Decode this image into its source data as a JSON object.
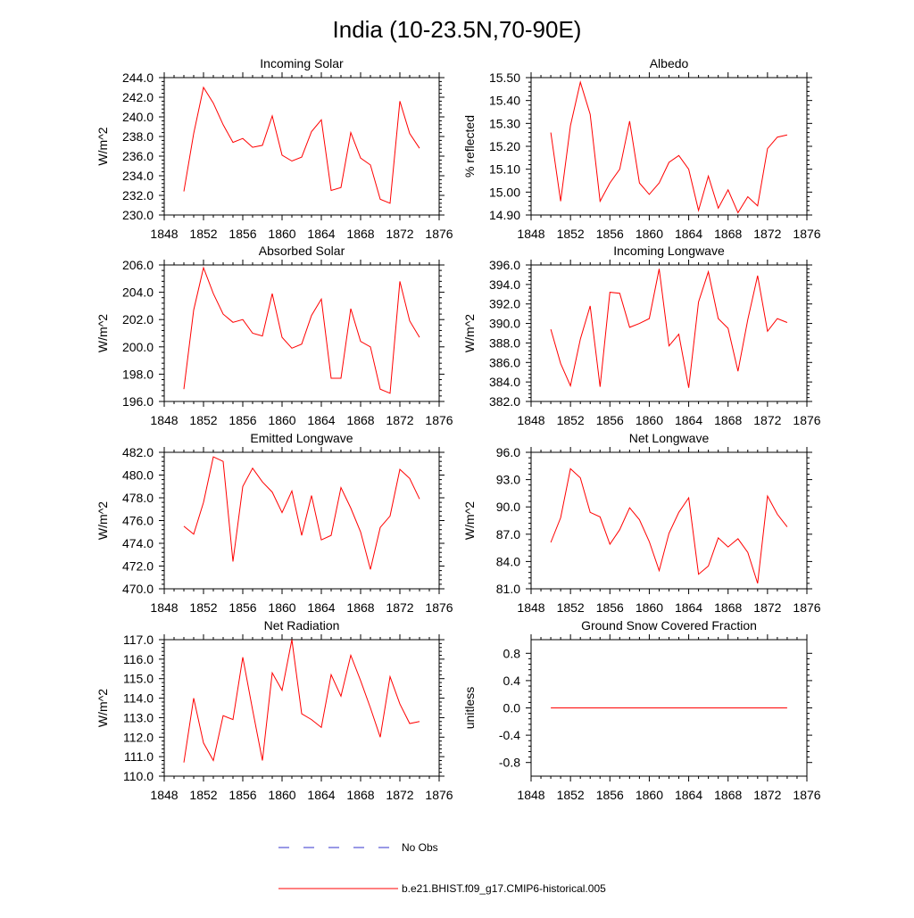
{
  "title": "India (10-23.5N,70-90E)",
  "colors": {
    "model": "#ff0000",
    "obs": "#3333cc",
    "axis": "#000000"
  },
  "legend": [
    {
      "label": "No Obs",
      "style": "dashed",
      "color": "#3333cc"
    },
    {
      "label": "b.e21.BHIST.f09_g17.CMIP6-historical.005",
      "style": "solid",
      "color": "#ff0000"
    }
  ],
  "chart_data": [
    {
      "type": "line",
      "title": "Incoming Solar",
      "ylabel": "W/m^2",
      "xlim": [
        1848,
        1876
      ],
      "ylim": [
        230,
        244
      ],
      "xticks": [
        1848,
        1852,
        1856,
        1860,
        1864,
        1868,
        1872,
        1876
      ],
      "xtick_labels": [
        "1848",
        "1852",
        "1856",
        "1860",
        "1864",
        "1868",
        "1872",
        "1876"
      ],
      "yticks": [
        230,
        232,
        234,
        236,
        238,
        240,
        242,
        244
      ],
      "ytick_labels": [
        "230.0",
        "232.0",
        "234.0",
        "236.0",
        "238.0",
        "240.0",
        "242.0",
        "244.0"
      ],
      "x": [
        1850,
        1851,
        1852,
        1853,
        1854,
        1855,
        1856,
        1857,
        1858,
        1859,
        1860,
        1861,
        1862,
        1863,
        1864,
        1865,
        1866,
        1867,
        1868,
        1869,
        1870,
        1871,
        1872,
        1873,
        1874
      ],
      "series": [
        {
          "name": "b.e21.BHIST.f09_g17.CMIP6-historical.005",
          "values": [
            232.4,
            238.3,
            243.0,
            241.4,
            239.2,
            237.4,
            237.8,
            236.9,
            237.1,
            240.1,
            236.1,
            235.5,
            235.9,
            238.5,
            239.7,
            232.5,
            232.8,
            238.4,
            235.8,
            235.1,
            231.6,
            231.2,
            241.6,
            238.3,
            236.8
          ]
        }
      ]
    },
    {
      "type": "line",
      "title": "Albedo",
      "ylabel": "% reflected",
      "xlim": [
        1848,
        1876
      ],
      "ylim": [
        14.9,
        15.5
      ],
      "xticks": [
        1848,
        1852,
        1856,
        1860,
        1864,
        1868,
        1872,
        1876
      ],
      "xtick_labels": [
        "1848",
        "1852",
        "1856",
        "1860",
        "1864",
        "1868",
        "1872",
        "1876"
      ],
      "yticks": [
        14.9,
        15.0,
        15.1,
        15.2,
        15.3,
        15.4,
        15.5
      ],
      "ytick_labels": [
        "14.90",
        "15.00",
        "15.10",
        "15.20",
        "15.30",
        "15.40",
        "15.50"
      ],
      "x": [
        1850,
        1851,
        1852,
        1853,
        1854,
        1855,
        1856,
        1857,
        1858,
        1859,
        1860,
        1861,
        1862,
        1863,
        1864,
        1865,
        1866,
        1867,
        1868,
        1869,
        1870,
        1871,
        1872,
        1873,
        1874
      ],
      "series": [
        {
          "name": "b.e21.BHIST.f09_g17.CMIP6-historical.005",
          "values": [
            15.26,
            14.96,
            15.29,
            15.48,
            15.34,
            14.96,
            15.04,
            15.1,
            15.31,
            15.04,
            14.99,
            15.04,
            15.13,
            15.16,
            15.1,
            14.92,
            15.07,
            14.93,
            15.01,
            14.91,
            14.98,
            14.94,
            15.19,
            15.24,
            15.25
          ]
        }
      ]
    },
    {
      "type": "line",
      "title": "Absorbed Solar",
      "ylabel": "W/m^2",
      "xlim": [
        1848,
        1876
      ],
      "ylim": [
        196,
        206
      ],
      "xticks": [
        1848,
        1852,
        1856,
        1860,
        1864,
        1868,
        1872,
        1876
      ],
      "xtick_labels": [
        "1848",
        "1852",
        "1856",
        "1860",
        "1864",
        "1868",
        "1872",
        "1876"
      ],
      "yticks": [
        196,
        198,
        200,
        202,
        204,
        206
      ],
      "ytick_labels": [
        "196.0",
        "198.0",
        "200.0",
        "202.0",
        "204.0",
        "206.0"
      ],
      "x": [
        1850,
        1851,
        1852,
        1853,
        1854,
        1855,
        1856,
        1857,
        1858,
        1859,
        1860,
        1861,
        1862,
        1863,
        1864,
        1865,
        1866,
        1867,
        1868,
        1869,
        1870,
        1871,
        1872,
        1873,
        1874
      ],
      "series": [
        {
          "name": "b.e21.BHIST.f09_g17.CMIP6-historical.005",
          "values": [
            196.9,
            202.7,
            205.8,
            203.9,
            202.4,
            201.8,
            202.0,
            201.0,
            200.8,
            203.9,
            200.7,
            199.9,
            200.2,
            202.3,
            203.5,
            197.7,
            197.7,
            202.8,
            200.4,
            200.0,
            196.9,
            196.6,
            204.8,
            201.9,
            200.7
          ]
        }
      ]
    },
    {
      "type": "line",
      "title": "Incoming Longwave",
      "ylabel": "W/m^2",
      "xlim": [
        1848,
        1876
      ],
      "ylim": [
        382,
        396
      ],
      "xticks": [
        1848,
        1852,
        1856,
        1860,
        1864,
        1868,
        1872,
        1876
      ],
      "xtick_labels": [
        "1848",
        "1852",
        "1856",
        "1860",
        "1864",
        "1868",
        "1872",
        "1876"
      ],
      "yticks": [
        382,
        384,
        386,
        388,
        390,
        392,
        394,
        396
      ],
      "ytick_labels": [
        "382.0",
        "384.0",
        "386.0",
        "388.0",
        "390.0",
        "392.0",
        "394.0",
        "396.0"
      ],
      "x": [
        1850,
        1851,
        1852,
        1853,
        1854,
        1855,
        1856,
        1857,
        1858,
        1859,
        1860,
        1861,
        1862,
        1863,
        1864,
        1865,
        1866,
        1867,
        1868,
        1869,
        1870,
        1871,
        1872,
        1873,
        1874
      ],
      "series": [
        {
          "name": "b.e21.BHIST.f09_g17.CMIP6-historical.005",
          "values": [
            389.4,
            385.9,
            383.6,
            388.4,
            391.8,
            383.5,
            393.2,
            393.1,
            389.6,
            390.0,
            390.5,
            395.6,
            387.7,
            388.9,
            383.4,
            392.2,
            395.3,
            390.5,
            389.5,
            385.1,
            390.4,
            394.9,
            389.2,
            390.5,
            390.1
          ]
        }
      ]
    },
    {
      "type": "line",
      "title": "Emitted Longwave",
      "ylabel": "W/m^2",
      "xlim": [
        1848,
        1876
      ],
      "ylim": [
        470,
        482
      ],
      "xticks": [
        1848,
        1852,
        1856,
        1860,
        1864,
        1868,
        1872,
        1876
      ],
      "xtick_labels": [
        "1848",
        "1852",
        "1856",
        "1860",
        "1864",
        "1868",
        "1872",
        "1876"
      ],
      "yticks": [
        470,
        472,
        474,
        476,
        478,
        480,
        482
      ],
      "ytick_labels": [
        "470.0",
        "472.0",
        "474.0",
        "476.0",
        "478.0",
        "480.0",
        "482.0"
      ],
      "x": [
        1850,
        1851,
        1852,
        1853,
        1854,
        1855,
        1856,
        1857,
        1858,
        1859,
        1860,
        1861,
        1862,
        1863,
        1864,
        1865,
        1866,
        1867,
        1868,
        1869,
        1870,
        1871,
        1872,
        1873,
        1874
      ],
      "series": [
        {
          "name": "b.e21.BHIST.f09_g17.CMIP6-historical.005",
          "values": [
            475.5,
            474.8,
            477.6,
            481.6,
            481.2,
            472.4,
            479.0,
            480.6,
            479.4,
            478.5,
            476.7,
            478.6,
            474.7,
            478.2,
            474.3,
            474.7,
            478.9,
            477.1,
            475.0,
            471.7,
            475.4,
            476.4,
            480.5,
            479.7,
            477.9
          ]
        }
      ]
    },
    {
      "type": "line",
      "title": "Net Longwave",
      "ylabel": "W/m^2",
      "xlim": [
        1848,
        1876
      ],
      "ylim": [
        81,
        96
      ],
      "xticks": [
        1848,
        1852,
        1856,
        1860,
        1864,
        1868,
        1872,
        1876
      ],
      "xtick_labels": [
        "1848",
        "1852",
        "1856",
        "1860",
        "1864",
        "1868",
        "1872",
        "1876"
      ],
      "yticks": [
        81,
        84,
        87,
        90,
        93,
        96
      ],
      "ytick_labels": [
        "81.0",
        "84.0",
        "87.0",
        "90.0",
        "93.0",
        "96.0"
      ],
      "x": [
        1850,
        1851,
        1852,
        1853,
        1854,
        1855,
        1856,
        1857,
        1858,
        1859,
        1860,
        1861,
        1862,
        1863,
        1864,
        1865,
        1866,
        1867,
        1868,
        1869,
        1870,
        1871,
        1872,
        1873,
        1874
      ],
      "series": [
        {
          "name": "b.e21.BHIST.f09_g17.CMIP6-historical.005",
          "values": [
            86.1,
            88.8,
            94.2,
            93.2,
            89.4,
            88.9,
            85.9,
            87.5,
            89.9,
            88.6,
            86.2,
            83.0,
            87.1,
            89.4,
            91.0,
            82.6,
            83.5,
            86.6,
            85.6,
            86.5,
            85.0,
            81.6,
            91.2,
            89.2,
            87.8
          ]
        }
      ]
    },
    {
      "type": "line",
      "title": "Net Radiation",
      "ylabel": "W/m^2",
      "xlim": [
        1848,
        1876
      ],
      "ylim": [
        110,
        117
      ],
      "xticks": [
        1848,
        1852,
        1856,
        1860,
        1864,
        1868,
        1872,
        1876
      ],
      "xtick_labels": [
        "1848",
        "1852",
        "1856",
        "1860",
        "1864",
        "1868",
        "1872",
        "1876"
      ],
      "yticks": [
        110,
        111,
        112,
        113,
        114,
        115,
        116,
        117
      ],
      "ytick_labels": [
        "110.0",
        "111.0",
        "112.0",
        "113.0",
        "114.0",
        "115.0",
        "116.0",
        "117.0"
      ],
      "x": [
        1850,
        1851,
        1852,
        1853,
        1854,
        1855,
        1856,
        1857,
        1858,
        1859,
        1860,
        1861,
        1862,
        1863,
        1864,
        1865,
        1866,
        1867,
        1868,
        1869,
        1870,
        1871,
        1872,
        1873,
        1874
      ],
      "series": [
        {
          "name": "b.e21.BHIST.f09_g17.CMIP6-historical.005",
          "values": [
            110.7,
            114.0,
            111.7,
            110.8,
            113.1,
            112.9,
            116.1,
            113.4,
            110.8,
            115.3,
            114.4,
            117.0,
            113.2,
            112.9,
            112.5,
            115.2,
            114.1,
            116.2,
            114.9,
            113.5,
            112.0,
            115.1,
            113.7,
            112.7,
            112.8
          ]
        }
      ]
    },
    {
      "type": "line",
      "title": "Ground Snow Covered Fraction",
      "ylabel": "unitless",
      "xlim": [
        1848,
        1876
      ],
      "ylim": [
        -1.0,
        1.0
      ],
      "xticks": [
        1848,
        1852,
        1856,
        1860,
        1864,
        1868,
        1872,
        1876
      ],
      "xtick_labels": [
        "1848",
        "1852",
        "1856",
        "1860",
        "1864",
        "1868",
        "1872",
        "1876"
      ],
      "yticks": [
        -0.8,
        -0.4,
        0.0,
        0.4,
        0.8
      ],
      "ytick_labels": [
        "-0.8",
        "-0.4",
        "0.0",
        "0.4",
        "0.8"
      ],
      "x": [
        1850,
        1851,
        1852,
        1853,
        1854,
        1855,
        1856,
        1857,
        1858,
        1859,
        1860,
        1861,
        1862,
        1863,
        1864,
        1865,
        1866,
        1867,
        1868,
        1869,
        1870,
        1871,
        1872,
        1873,
        1874
      ],
      "series": [
        {
          "name": "b.e21.BHIST.f09_g17.CMIP6-historical.005",
          "values": [
            0,
            0,
            0,
            0,
            0,
            0,
            0,
            0,
            0,
            0,
            0,
            0,
            0,
            0,
            0,
            0,
            0,
            0,
            0,
            0,
            0,
            0,
            0,
            0,
            0
          ]
        }
      ]
    }
  ]
}
